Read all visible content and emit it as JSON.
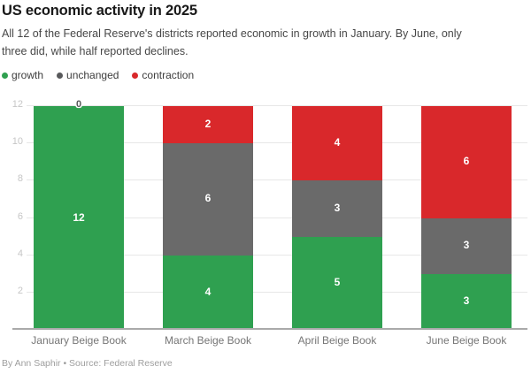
{
  "header": {
    "title": "US economic activity in 2025",
    "subtitle_line1": "All 12 of the Federal Reserve's districts reported economic in growth in January. By June, only",
    "subtitle_line2": "three did, while half reported declines."
  },
  "legend": [
    {
      "label": "growth",
      "color": "#2fa050"
    },
    {
      "label": "unchanged",
      "color": "#58595b"
    },
    {
      "label": "contraction",
      "color": "#d9282b"
    }
  ],
  "chart_data": {
    "type": "bar",
    "stacked": true,
    "title": "US economic activity in 2025",
    "categories": [
      "January Beige Book",
      "March Beige Book",
      "April Beige Book",
      "June Beige Book"
    ],
    "series": [
      {
        "name": "growth",
        "color": "#2fa050",
        "values": [
          12,
          4,
          5,
          3
        ]
      },
      {
        "name": "unchanged",
        "color": "#6a6a6a",
        "values": [
          0,
          6,
          3,
          3
        ]
      },
      {
        "name": "contraction",
        "color": "#d9282b",
        "values": [
          0,
          2,
          4,
          6
        ]
      }
    ],
    "ylim": [
      0,
      12
    ],
    "yticks": [
      2,
      4,
      6,
      8,
      10,
      12
    ],
    "grid": "horizontal",
    "legend_position": "top"
  },
  "footer": {
    "byline": "By Ann Saphir • Source: Federal Reserve"
  }
}
